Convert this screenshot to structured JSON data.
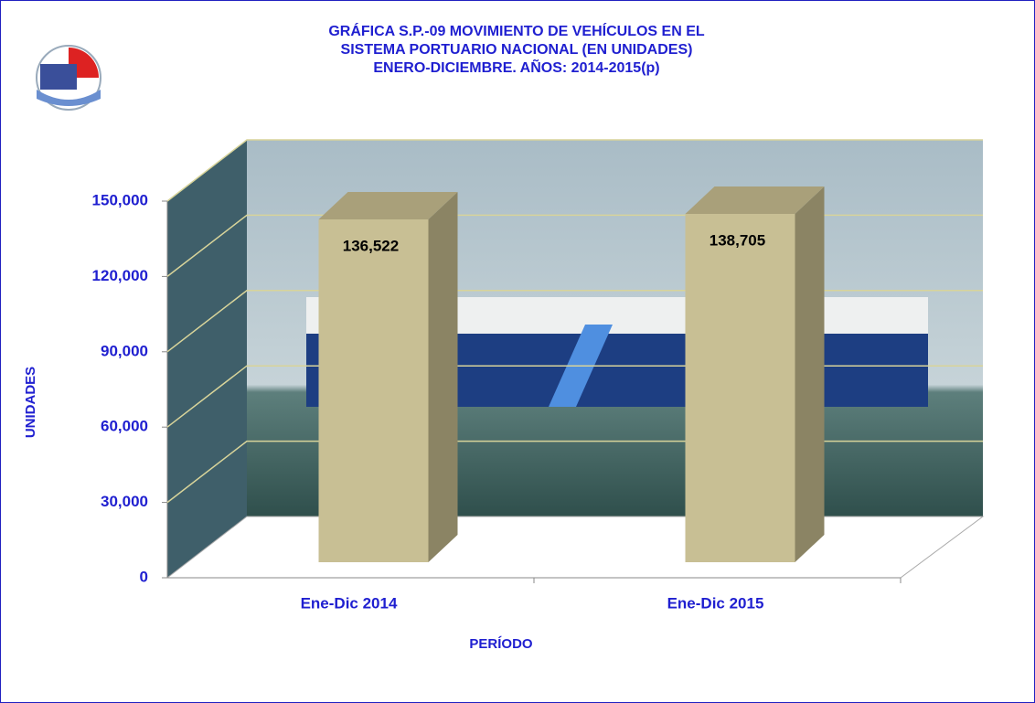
{
  "chart_data": {
    "type": "bar3d",
    "title": [
      "GRÁFICA S.P.-09 MOVIMIENTO DE VEHÍCULOS EN EL",
      "SISTEMA PORTUARIO NACIONAL (EN UNIDADES)",
      "ENERO-DICIEMBRE. AÑOS: 2014-2015(p)"
    ],
    "categories": [
      "Ene-Dic 2014",
      "Ene-Dic 2015"
    ],
    "values": [
      136522,
      138705
    ],
    "value_labels": [
      "136,522",
      "138,705"
    ],
    "color": "#c8bf94",
    "ylabel": "UNIDADES",
    "xlabel": "PERÍODO",
    "ylim": [
      0,
      150000
    ],
    "yticks": [
      0,
      {
        "value": 30000,
        "label": "30,000"
      },
      {
        "value": 60000,
        "label": "60,000"
      },
      {
        "value": 90000,
        "label": "90,000"
      },
      {
        "value": 120000,
        "label": "120,000"
      },
      {
        "value": 150000,
        "label": "150,000"
      }
    ],
    "grid": true
  }
}
